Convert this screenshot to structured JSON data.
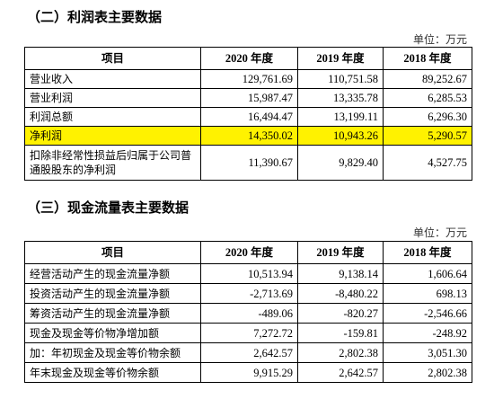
{
  "income": {
    "title": "（二）利润表主要数据",
    "unit": "单位：万元",
    "headers": [
      "项目",
      "2020 年度",
      "2019 年度",
      "2018 年度"
    ],
    "rows": [
      [
        "营业收入",
        "129,761.69",
        "110,751.58",
        "89,252.67"
      ],
      [
        "营业利润",
        "15,987.47",
        "13,335.78",
        "6,285.53"
      ],
      [
        "利润总额",
        "16,494.47",
        "13,199.11",
        "6,296.30"
      ],
      [
        "净利润",
        "14,350.02",
        "10,943.26",
        "5,290.57"
      ],
      [
        "扣除非经常性损益后归属于公司普通股股东的净利润",
        "11,390.67",
        "9,829.40",
        "4,527.75"
      ]
    ]
  },
  "cashflow": {
    "title": "（三）现金流量表主要数据",
    "unit": "单位：万元",
    "headers": [
      "项目",
      "2020 年度",
      "2019 年度",
      "2018 年度"
    ],
    "rows": [
      [
        "经营活动产生的现金流量净额",
        "10,513.94",
        "9,138.14",
        "1,606.64"
      ],
      [
        "投资活动产生的现金流量净额",
        "-2,713.69",
        "-8,480.22",
        "698.13"
      ],
      [
        "筹资活动产生的现金流量净额",
        "-489.06",
        "-820.27",
        "-2,546.66"
      ],
      [
        "现金及现金等价物净增加额",
        "7,272.72",
        "-159.81",
        "-248.92"
      ],
      [
        "加：年初现金及现金等价物余额",
        "2,642.57",
        "2,802.38",
        "3,051.30"
      ],
      [
        "年末现金及现金等价物余额",
        "9,915.29",
        "2,642.57",
        "2,802.38"
      ]
    ]
  }
}
